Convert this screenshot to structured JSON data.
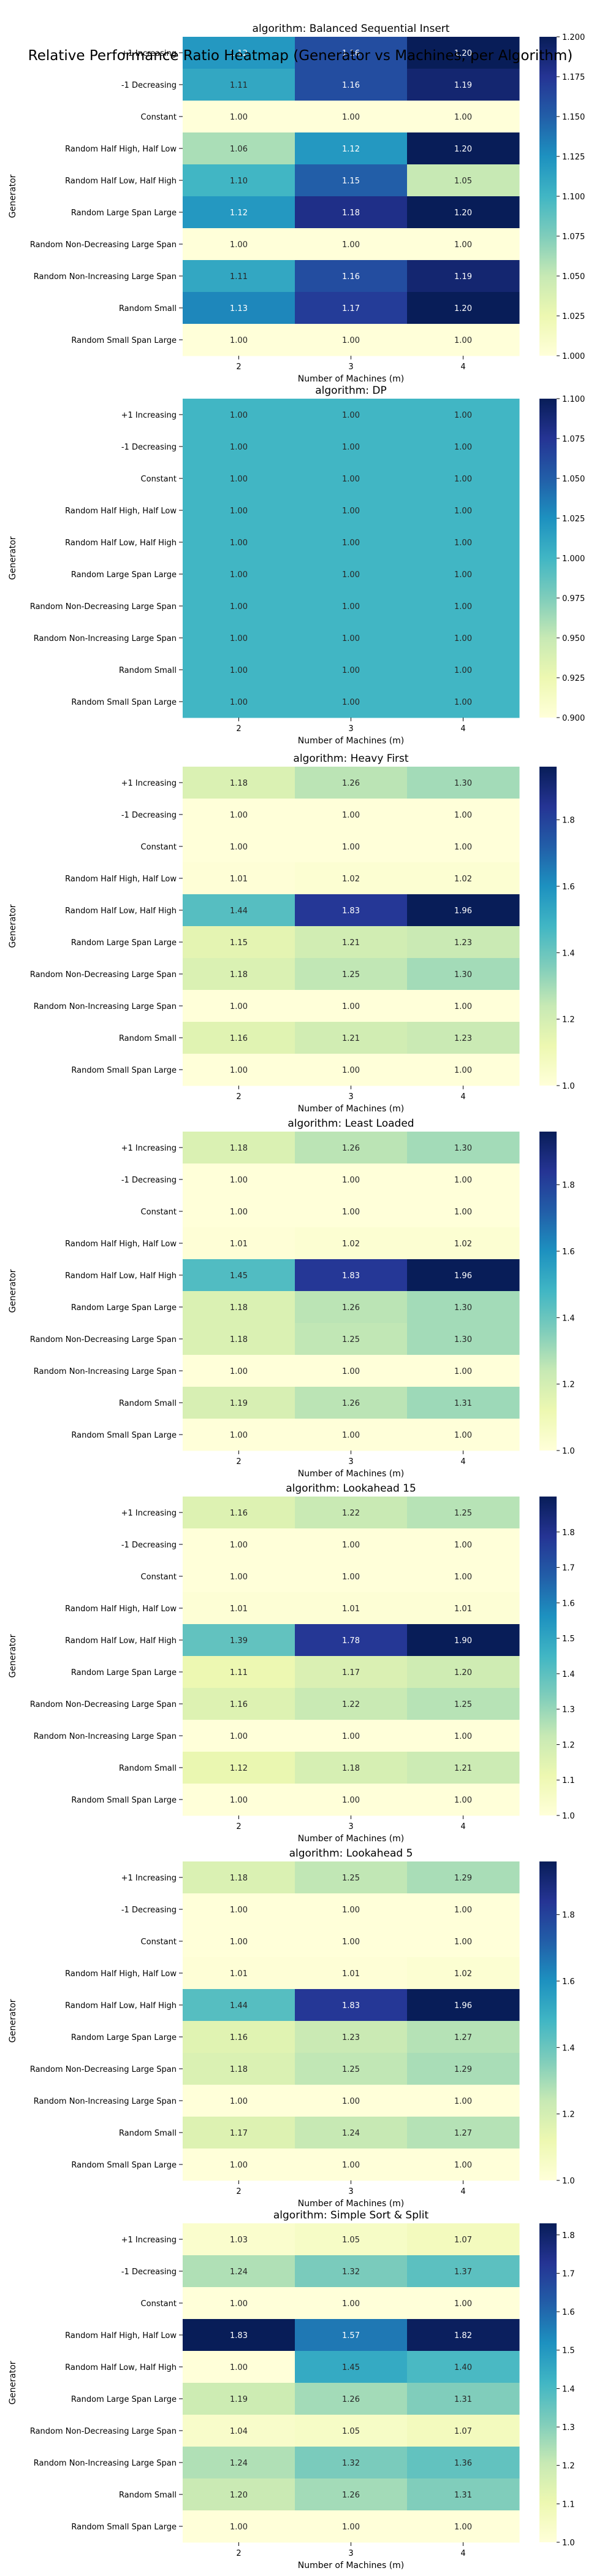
{
  "suptitle": "Relative Performance Ratio Heatmap (Generator vs Machines, per Algorithm)",
  "colormap": [
    "#ffffd9",
    "#edf8b1",
    "#c7e9b4",
    "#7fcdbb",
    "#41b6c4",
    "#1d91c0",
    "#225ea8",
    "#253494",
    "#081d58"
  ],
  "chart_data": [
    {
      "type": "heatmap",
      "title": "algorithm: Balanced Sequential Insert",
      "xlabel": "Number of Machines (m)",
      "ylabel": "Generator",
      "x": [
        "2",
        "3",
        "4"
      ],
      "y": [
        "+1 Increasing",
        "-1 Decreasing",
        "Constant",
        "Random Half High, Half Low",
        "Random Half Low, Half High",
        "Random Large Span Large",
        "Random Non-Decreasing Large Span",
        "Random Non-Increasing Large Span",
        "Random Small",
        "Random Small Span Large"
      ],
      "values": [
        [
          1.12,
          1.16,
          1.2
        ],
        [
          1.11,
          1.16,
          1.19
        ],
        [
          1.0,
          1.0,
          1.0
        ],
        [
          1.06,
          1.12,
          1.2
        ],
        [
          1.1,
          1.15,
          1.05
        ],
        [
          1.12,
          1.18,
          1.2
        ],
        [
          1.0,
          1.0,
          1.0
        ],
        [
          1.11,
          1.16,
          1.19
        ],
        [
          1.13,
          1.17,
          1.2
        ],
        [
          1.0,
          1.0,
          1.0
        ]
      ],
      "vmin": 1.0,
      "vmax": 1.2,
      "colorbar_ticks": [
        "1.000",
        "1.025",
        "1.050",
        "1.075",
        "1.100",
        "1.125",
        "1.150",
        "1.175",
        "1.200"
      ]
    },
    {
      "type": "heatmap",
      "title": "algorithm: DP",
      "xlabel": "Number of Machines (m)",
      "ylabel": "Generator",
      "x": [
        "2",
        "3",
        "4"
      ],
      "y": [
        "+1 Increasing",
        "-1 Decreasing",
        "Constant",
        "Random Half High, Half Low",
        "Random Half Low, Half High",
        "Random Large Span Large",
        "Random Non-Decreasing Large Span",
        "Random Non-Increasing Large Span",
        "Random Small",
        "Random Small Span Large"
      ],
      "values": [
        [
          1.0,
          1.0,
          1.0
        ],
        [
          1.0,
          1.0,
          1.0
        ],
        [
          1.0,
          1.0,
          1.0
        ],
        [
          1.0,
          1.0,
          1.0
        ],
        [
          1.0,
          1.0,
          1.0
        ],
        [
          1.0,
          1.0,
          1.0
        ],
        [
          1.0,
          1.0,
          1.0
        ],
        [
          1.0,
          1.0,
          1.0
        ],
        [
          1.0,
          1.0,
          1.0
        ],
        [
          1.0,
          1.0,
          1.0
        ]
      ],
      "vmin": 0.9,
      "vmax": 1.1,
      "colorbar_ticks": [
        "0.900",
        "0.925",
        "0.950",
        "0.975",
        "1.000",
        "1.025",
        "1.050",
        "1.075",
        "1.100"
      ]
    },
    {
      "type": "heatmap",
      "title": "algorithm: Heavy First",
      "xlabel": "Number of Machines (m)",
      "ylabel": "Generator",
      "x": [
        "2",
        "3",
        "4"
      ],
      "y": [
        "+1 Increasing",
        "-1 Decreasing",
        "Constant",
        "Random Half High, Half Low",
        "Random Half Low, Half High",
        "Random Large Span Large",
        "Random Non-Decreasing Large Span",
        "Random Non-Increasing Large Span",
        "Random Small",
        "Random Small Span Large"
      ],
      "values": [
        [
          1.18,
          1.26,
          1.3
        ],
        [
          1.0,
          1.0,
          1.0
        ],
        [
          1.0,
          1.0,
          1.0
        ],
        [
          1.01,
          1.02,
          1.02
        ],
        [
          1.44,
          1.83,
          1.96
        ],
        [
          1.15,
          1.21,
          1.23
        ],
        [
          1.18,
          1.25,
          1.3
        ],
        [
          1.0,
          1.0,
          1.0
        ],
        [
          1.16,
          1.21,
          1.23
        ],
        [
          1.0,
          1.0,
          1.0
        ]
      ],
      "vmin": 1.0,
      "vmax": 1.96,
      "colorbar_ticks": [
        "1.0",
        "1.2",
        "1.4",
        "1.6",
        "1.8"
      ]
    },
    {
      "type": "heatmap",
      "title": "algorithm: Least Loaded",
      "xlabel": "Number of Machines (m)",
      "ylabel": "Generator",
      "x": [
        "2",
        "3",
        "4"
      ],
      "y": [
        "+1 Increasing",
        "-1 Decreasing",
        "Constant",
        "Random Half High, Half Low",
        "Random Half Low, Half High",
        "Random Large Span Large",
        "Random Non-Decreasing Large Span",
        "Random Non-Increasing Large Span",
        "Random Small",
        "Random Small Span Large"
      ],
      "values": [
        [
          1.18,
          1.26,
          1.3
        ],
        [
          1.0,
          1.0,
          1.0
        ],
        [
          1.0,
          1.0,
          1.0
        ],
        [
          1.01,
          1.02,
          1.02
        ],
        [
          1.45,
          1.83,
          1.96
        ],
        [
          1.18,
          1.26,
          1.3
        ],
        [
          1.18,
          1.25,
          1.3
        ],
        [
          1.0,
          1.0,
          1.0
        ],
        [
          1.19,
          1.26,
          1.31
        ],
        [
          1.0,
          1.0,
          1.0
        ]
      ],
      "vmin": 1.0,
      "vmax": 1.96,
      "colorbar_ticks": [
        "1.0",
        "1.2",
        "1.4",
        "1.6",
        "1.8"
      ]
    },
    {
      "type": "heatmap",
      "title": "algorithm: Lookahead 15",
      "xlabel": "Number of Machines (m)",
      "ylabel": "Generator",
      "x": [
        "2",
        "3",
        "4"
      ],
      "y": [
        "+1 Increasing",
        "-1 Decreasing",
        "Constant",
        "Random Half High, Half Low",
        "Random Half Low, Half High",
        "Random Large Span Large",
        "Random Non-Decreasing Large Span",
        "Random Non-Increasing Large Span",
        "Random Small",
        "Random Small Span Large"
      ],
      "values": [
        [
          1.16,
          1.22,
          1.25
        ],
        [
          1.0,
          1.0,
          1.0
        ],
        [
          1.0,
          1.0,
          1.0
        ],
        [
          1.01,
          1.01,
          1.01
        ],
        [
          1.39,
          1.78,
          1.9
        ],
        [
          1.11,
          1.17,
          1.2
        ],
        [
          1.16,
          1.22,
          1.25
        ],
        [
          1.0,
          1.0,
          1.0
        ],
        [
          1.12,
          1.18,
          1.21
        ],
        [
          1.0,
          1.0,
          1.0
        ]
      ],
      "vmin": 1.0,
      "vmax": 1.9,
      "colorbar_ticks": [
        "1.0",
        "1.1",
        "1.2",
        "1.3",
        "1.4",
        "1.5",
        "1.6",
        "1.7",
        "1.8"
      ]
    },
    {
      "type": "heatmap",
      "title": "algorithm: Lookahead 5",
      "xlabel": "Number of Machines (m)",
      "ylabel": "Generator",
      "x": [
        "2",
        "3",
        "4"
      ],
      "y": [
        "+1 Increasing",
        "-1 Decreasing",
        "Constant",
        "Random Half High, Half Low",
        "Random Half Low, Half High",
        "Random Large Span Large",
        "Random Non-Decreasing Large Span",
        "Random Non-Increasing Large Span",
        "Random Small",
        "Random Small Span Large"
      ],
      "values": [
        [
          1.18,
          1.25,
          1.29
        ],
        [
          1.0,
          1.0,
          1.0
        ],
        [
          1.0,
          1.0,
          1.0
        ],
        [
          1.01,
          1.01,
          1.02
        ],
        [
          1.44,
          1.83,
          1.96
        ],
        [
          1.16,
          1.23,
          1.27
        ],
        [
          1.18,
          1.25,
          1.29
        ],
        [
          1.0,
          1.0,
          1.0
        ],
        [
          1.17,
          1.24,
          1.27
        ],
        [
          1.0,
          1.0,
          1.0
        ]
      ],
      "vmin": 1.0,
      "vmax": 1.96,
      "colorbar_ticks": [
        "1.0",
        "1.2",
        "1.4",
        "1.6",
        "1.8"
      ]
    },
    {
      "type": "heatmap",
      "title": "algorithm: Simple Sort & Split",
      "xlabel": "Number of Machines (m)",
      "ylabel": "Generator",
      "x": [
        "2",
        "3",
        "4"
      ],
      "y": [
        "+1 Increasing",
        "-1 Decreasing",
        "Constant",
        "Random Half High, Half Low",
        "Random Half Low, Half High",
        "Random Large Span Large",
        "Random Non-Decreasing Large Span",
        "Random Non-Increasing Large Span",
        "Random Small",
        "Random Small Span Large"
      ],
      "values": [
        [
          1.03,
          1.05,
          1.07
        ],
        [
          1.24,
          1.32,
          1.37
        ],
        [
          1.0,
          1.0,
          1.0
        ],
        [
          1.83,
          1.57,
          1.82
        ],
        [
          1.0,
          1.45,
          1.4
        ],
        [
          1.19,
          1.26,
          1.31
        ],
        [
          1.04,
          1.05,
          1.07
        ],
        [
          1.24,
          1.32,
          1.36
        ],
        [
          1.2,
          1.26,
          1.31
        ],
        [
          1.0,
          1.0,
          1.0
        ]
      ],
      "vmin": 1.0,
      "vmax": 1.83,
      "colorbar_ticks": [
        "1.0",
        "1.1",
        "1.2",
        "1.3",
        "1.4",
        "1.5",
        "1.6",
        "1.7",
        "1.8"
      ]
    }
  ]
}
